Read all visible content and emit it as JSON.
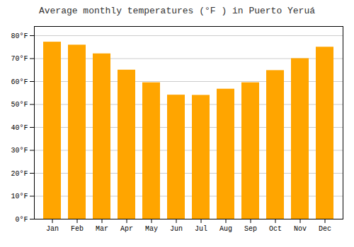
{
  "chart_data": {
    "type": "bar",
    "title": "Average monthly temperatures (°F ) in Puerto Yeruá",
    "categories": [
      "Jan",
      "Feb",
      "Mar",
      "Apr",
      "May",
      "Jun",
      "Jul",
      "Aug",
      "Sep",
      "Oct",
      "Nov",
      "Dec"
    ],
    "values": [
      77.2,
      75.9,
      72.1,
      65.0,
      59.5,
      54.1,
      54.0,
      56.7,
      59.5,
      64.8,
      70.0,
      75.0
    ],
    "color": "#FFA500",
    "ylim": [
      0,
      84
    ],
    "yticks": [
      {
        "value": 0,
        "label": "0°F"
      },
      {
        "value": 10,
        "label": "10°F"
      },
      {
        "value": 20,
        "label": "20°F"
      },
      {
        "value": 30,
        "label": "30°F"
      },
      {
        "value": 40,
        "label": "40°F"
      },
      {
        "value": 50,
        "label": "50°F"
      },
      {
        "value": 60,
        "label": "60°F"
      },
      {
        "value": 70,
        "label": "70°F"
      },
      {
        "value": 80,
        "label": "80°F"
      }
    ],
    "grid": true
  }
}
